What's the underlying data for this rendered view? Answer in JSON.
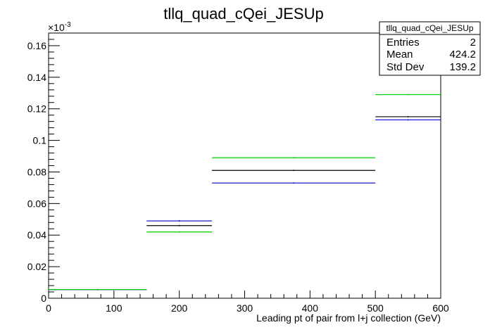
{
  "chart_data": {
    "type": "histogram",
    "title": "tllq_quad_cQei_JESUp",
    "xlabel": "Leading pt of pair from l+j collection (GeV)",
    "ylabel": "",
    "y_multiplier_label": "×10",
    "y_multiplier_exponent": "-3",
    "xlim": [
      0,
      600
    ],
    "ylim": [
      0,
      0.168
    ],
    "x_ticks": [
      0,
      100,
      200,
      300,
      400,
      500,
      600
    ],
    "x_tick_labels": [
      "0",
      "100",
      "200",
      "300",
      "400",
      "500",
      "600"
    ],
    "y_ticks": [
      0,
      0.02,
      0.04,
      0.06,
      0.08,
      0.1,
      0.12,
      0.14,
      0.16
    ],
    "y_tick_labels": [
      "0",
      "0.02",
      "0.04",
      "0.06",
      "0.08",
      "0.1",
      "0.12",
      "0.14",
      "0.16"
    ],
    "bin_edges": [
      0,
      150,
      250,
      500,
      600
    ],
    "series": [
      {
        "color": "#000000",
        "values": [
          0.0055,
          0.046,
          0.081,
          0.115
        ]
      },
      {
        "color": "#0000cc",
        "values": [
          0.0055,
          0.049,
          0.073,
          0.113
        ]
      },
      {
        "color": "#00cc00",
        "values": [
          0.0055,
          0.042,
          0.089,
          0.129
        ]
      }
    ],
    "stats_box": {
      "title": "tllq_quad_cQei_JESUp",
      "rows": [
        {
          "label": "Entries",
          "value": "2"
        },
        {
          "label": "Mean",
          "value": "424.2"
        },
        {
          "label": "Std Dev",
          "value": "139.2"
        }
      ]
    }
  }
}
